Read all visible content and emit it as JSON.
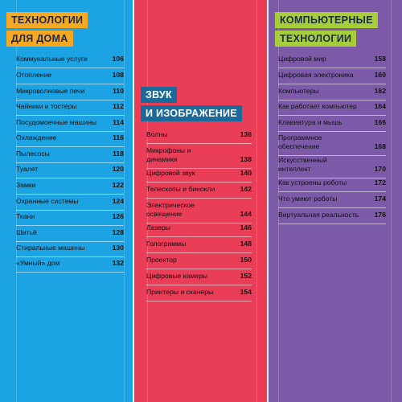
{
  "columns": [
    {
      "title_lines": [
        "ТЕХНОЛОГИИ",
        "ДЛЯ ДОМА"
      ],
      "items": [
        {
          "label": "Коммунальные услуги",
          "page": "106"
        },
        {
          "label": "Отопление",
          "page": "108"
        },
        {
          "label": "Микроволновые печи",
          "page": "110"
        },
        {
          "label": "Чайники и тостеры",
          "page": "112"
        },
        {
          "label": "Посудомоечные машины",
          "page": "114"
        },
        {
          "label": "Охлаждение",
          "page": "116"
        },
        {
          "label": "Пылесосы",
          "page": "118"
        },
        {
          "label": "Туалет",
          "page": "120"
        },
        {
          "label": "Замки",
          "page": "122"
        },
        {
          "label": "Охранные системы",
          "page": "124"
        },
        {
          "label": "Ткани",
          "page": "126"
        },
        {
          "label": "Шитьё",
          "page": "128"
        },
        {
          "label": "Стиральные машины",
          "page": "130"
        },
        {
          "label": "«Умный» дом",
          "page": "132"
        }
      ]
    },
    {
      "title_lines": [
        "ЗВУК",
        "И ИЗОБРАЖЕНИЕ"
      ],
      "items": [
        {
          "label": "Волны",
          "page": "136"
        },
        {
          "label": "Микрофоны и динамики",
          "page": "138"
        },
        {
          "label": "Цифровой звук",
          "page": "140"
        },
        {
          "label": "Телескопы и бинокли",
          "page": "142"
        },
        {
          "label": "Электрическое освещение",
          "page": "144"
        },
        {
          "label": "Лазеры",
          "page": "146"
        },
        {
          "label": "Голограммы",
          "page": "148"
        },
        {
          "label": "Проектор",
          "page": "150"
        },
        {
          "label": "Цифровые камеры",
          "page": "152"
        },
        {
          "label": "Принтеры и сканеры",
          "page": "154"
        }
      ]
    },
    {
      "title_lines": [
        "КОМПЬЮТЕРНЫЕ",
        "ТЕХНОЛОГИИ"
      ],
      "items": [
        {
          "label": "Цифровой мир",
          "page": "158"
        },
        {
          "label": "Цифровая электроника",
          "page": "160"
        },
        {
          "label": "Компьютеры",
          "page": "162"
        },
        {
          "label": "Как работает компьютер",
          "page": "164"
        },
        {
          "label": "Клавиатура и мышь",
          "page": "166"
        },
        {
          "label": "Программное обеспечение",
          "page": "168"
        },
        {
          "label": "Искусственный интеллект",
          "page": "170"
        },
        {
          "label": "Как устроены роботы",
          "page": "172"
        },
        {
          "label": "Что умеют роботы",
          "page": "174"
        },
        {
          "label": "Виртуальная реальность",
          "page": "176"
        }
      ]
    }
  ],
  "colors": {
    "blue": "#1ba3e3",
    "red": "#ea3d58",
    "purple": "#7c5aa8",
    "orange": "#f7a823",
    "dark_blue": "#1b6a9a",
    "green": "#a7cd3a"
  }
}
